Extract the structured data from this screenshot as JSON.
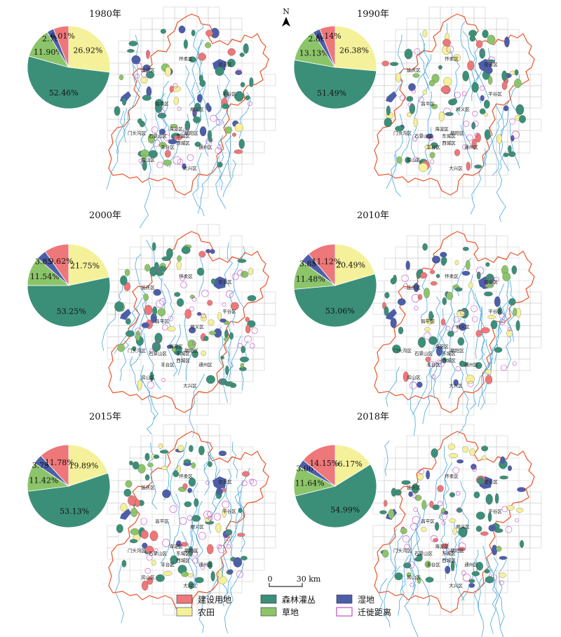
{
  "colors": {
    "built": "#ee7779",
    "farmland": "#f5f19a",
    "forest": "#3b8f79",
    "grass": "#8cc46a",
    "wetland": "#4d5ea9",
    "migration": "#c050c0",
    "boundary": "#e8552a",
    "river": "#4aa8dc",
    "grid": "#cfcfcf"
  },
  "districts": [
    "延庆区",
    "怀柔区",
    "昌平区",
    "顺义区",
    "平谷区",
    "门头沟区",
    "石景山区",
    "海淀区",
    "朝阳区",
    "丰台区",
    "东城区",
    "西城区",
    "通州区",
    "房山区",
    "大兴区",
    "密云区"
  ],
  "panels": [
    {
      "year": "1980年",
      "values": [
        6.01,
        26.92,
        52.46,
        11.9,
        2.7
      ],
      "labels": [
        "6.01%",
        "26.92%",
        "52.46%",
        "11.90%",
        "2.70%"
      ]
    },
    {
      "year": "1990年",
      "values": [
        6.14,
        26.38,
        51.49,
        13.13,
        2.86
      ],
      "labels": [
        "6.14%",
        "26.38%",
        "51.49%",
        "13.13%",
        "2.86%"
      ]
    },
    {
      "year": "2000年",
      "values": [
        9.62,
        21.75,
        53.25,
        11.54,
        3.85
      ],
      "labels": [
        "9.62%",
        "21.75%",
        "53.25%",
        "11.54%",
        "3.85%"
      ]
    },
    {
      "year": "2010年",
      "values": [
        11.12,
        20.49,
        53.06,
        11.48,
        3.85
      ],
      "labels": [
        "11.12%",
        "20.49%",
        "53.06%",
        "11.48%",
        "3.85%"
      ]
    },
    {
      "year": "2015年",
      "values": [
        11.78,
        19.89,
        53.13,
        11.42,
        3.79
      ],
      "labels": [
        "11.78%",
        "19.89%",
        "53.13%",
        "11.42%",
        "3.79%"
      ]
    },
    {
      "year": "2018年",
      "values": [
        14.15,
        16.17,
        54.99,
        11.64,
        3.06
      ],
      "labels": [
        "14.15%",
        "16.17%",
        "54.99%",
        "11.64%",
        "3.06%"
      ]
    }
  ],
  "north_label": "N",
  "scale": {
    "left": "0",
    "right": "30 km"
  },
  "legend": [
    {
      "label": "建设用地",
      "style": "built"
    },
    {
      "label": "农田",
      "style": "farmland"
    },
    {
      "label": "森林灌丛",
      "style": "forest"
    },
    {
      "label": "草地",
      "style": "grass"
    },
    {
      "label": "湿地",
      "style": "wetland"
    },
    {
      "label": "迁徙距离",
      "style": "migration"
    }
  ]
}
